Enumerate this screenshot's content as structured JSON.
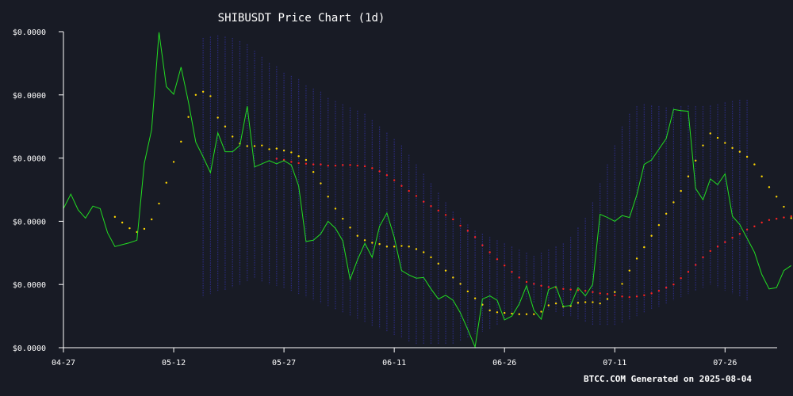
{
  "chart_data": {
    "type": "line",
    "title": "SHIBUSDT Price Chart (1d)",
    "xlabel": "",
    "ylabel": "",
    "grid": false,
    "legend": "none",
    "x_tick_labels": [
      "04-27",
      "05-12",
      "05-27",
      "06-11",
      "06-26",
      "07-11",
      "07-26"
    ],
    "y_tick_labels": [
      "$0.0000",
      "$0.0000",
      "$0.0000",
      "$0.0000",
      "$0.0000",
      "$0.0000"
    ],
    "footer": "BTCC.COM Generated on 2025-08-04",
    "ylim": [
      0,
      5
    ],
    "series": [
      {
        "kind": "price_line",
        "color": "#22dd22",
        "start_date": "04-27",
        "values": [
          2.2,
          2.43,
          2.18,
          2.05,
          2.24,
          2.2,
          1.82,
          1.6,
          1.63,
          1.66,
          1.7,
          2.92,
          3.45,
          4.99,
          4.13,
          4.01,
          4.44,
          3.89,
          3.25,
          3.02,
          2.77,
          3.4,
          3.1,
          3.1,
          3.2,
          3.82,
          2.86,
          2.91,
          2.96,
          2.91,
          2.96,
          2.89,
          2.56,
          1.68,
          1.7,
          1.8,
          2.0,
          1.89,
          1.69,
          1.08,
          1.39,
          1.65,
          1.43,
          1.92,
          2.13,
          1.75,
          1.22,
          1.15,
          1.1,
          1.11,
          0.93,
          0.77,
          0.83,
          0.75,
          0.55,
          0.29,
          0.01,
          0.77,
          0.82,
          0.75,
          0.44,
          0.5,
          0.69,
          0.98,
          0.59,
          0.45,
          0.92,
          0.97,
          0.65,
          0.67,
          0.95,
          0.82,
          1.0,
          2.11,
          2.06,
          2.0,
          2.09,
          2.06,
          2.42,
          2.9,
          2.97,
          3.14,
          3.31,
          3.77,
          3.75,
          3.74,
          2.52,
          2.34,
          2.67,
          2.58,
          2.75,
          2.08,
          1.95,
          1.73,
          1.51,
          1.16,
          0.93,
          0.95,
          1.22,
          1.3
        ]
      },
      {
        "kind": "moving_average_short",
        "color": "#ffd700",
        "start_date": "05-04",
        "values": [
          2.07,
          1.98,
          1.89,
          1.83,
          1.88,
          2.03,
          2.28,
          2.61,
          2.94,
          3.26,
          3.65,
          4.0,
          4.05,
          3.98,
          3.64,
          3.5,
          3.34,
          3.23,
          3.19,
          3.19,
          3.2,
          3.14,
          3.15,
          3.12,
          3.09,
          3.03,
          2.97,
          2.78,
          2.6,
          2.39,
          2.2,
          2.04,
          1.9,
          1.77,
          1.7,
          1.66,
          1.64,
          1.6,
          1.6,
          1.61,
          1.6,
          1.56,
          1.51,
          1.43,
          1.33,
          1.22,
          1.11,
          1.01,
          0.89,
          0.78,
          0.68,
          0.59,
          0.56,
          0.55,
          0.54,
          0.53,
          0.53,
          0.53,
          0.57,
          0.67,
          0.7,
          0.65,
          0.66,
          0.71,
          0.72,
          0.72,
          0.7,
          0.77,
          0.88,
          1.01,
          1.22,
          1.41,
          1.59,
          1.77,
          1.94,
          2.12,
          2.3,
          2.48,
          2.71,
          2.96,
          3.2,
          3.39,
          3.32,
          3.24,
          3.16,
          3.1,
          3.02,
          2.9,
          2.71,
          2.54,
          2.39,
          2.23,
          2.05,
          1.85,
          1.71,
          1.55
        ]
      },
      {
        "kind": "moving_average_long",
        "color": "#ff2222",
        "start_date": "05-26",
        "values": [
          2.99,
          2.97,
          2.94,
          2.92,
          2.91,
          2.9,
          2.9,
          2.88,
          2.88,
          2.89,
          2.89,
          2.88,
          2.87,
          2.84,
          2.79,
          2.73,
          2.65,
          2.56,
          2.48,
          2.4,
          2.31,
          2.24,
          2.17,
          2.1,
          2.03,
          1.93,
          1.85,
          1.75,
          1.62,
          1.51,
          1.4,
          1.3,
          1.2,
          1.11,
          1.04,
          1.01,
          0.98,
          0.96,
          0.95,
          0.93,
          0.92,
          0.91,
          0.9,
          0.88,
          0.86,
          0.85,
          0.83,
          0.81,
          0.8,
          0.81,
          0.83,
          0.86,
          0.9,
          0.95,
          1.0,
          1.1,
          1.2,
          1.31,
          1.43,
          1.53,
          1.6,
          1.67,
          1.74,
          1.8,
          1.87,
          1.92,
          1.98,
          2.02,
          2.04,
          2.06,
          2.08,
          2.09,
          2.1,
          2.11
        ]
      },
      {
        "kind": "band",
        "color": "#2e2e88",
        "start_date": "05-16",
        "upper": [
          4.9,
          4.92,
          4.94,
          4.92,
          4.9,
          4.85,
          4.8,
          4.7,
          4.6,
          4.5,
          4.45,
          4.35,
          4.3,
          4.25,
          4.15,
          4.1,
          4.05,
          3.95,
          3.9,
          3.85,
          3.8,
          3.75,
          3.7,
          3.6,
          3.5,
          3.4,
          3.3,
          3.2,
          3.05,
          2.9,
          2.75,
          2.6,
          2.45,
          2.3,
          2.15,
          2.05,
          1.95,
          1.85,
          1.8,
          1.75,
          1.7,
          1.65,
          1.6,
          1.55,
          1.5,
          1.45,
          1.5,
          1.55,
          1.6,
          1.65,
          1.75,
          1.9,
          2.05,
          2.3,
          2.6,
          2.9,
          3.2,
          3.5,
          3.7,
          3.82,
          3.85,
          3.83,
          3.82,
          3.8,
          3.8,
          3.82,
          3.83,
          3.82,
          3.82,
          3.83,
          3.85,
          3.88,
          3.9,
          3.92,
          3.92
        ],
        "lower": [
          0.8,
          0.85,
          0.9,
          0.9,
          0.95,
          1.0,
          1.05,
          1.1,
          1.05,
          1.0,
          0.98,
          0.95,
          0.9,
          0.85,
          0.8,
          0.75,
          0.7,
          0.65,
          0.6,
          0.55,
          0.5,
          0.45,
          0.4,
          0.35,
          0.3,
          0.25,
          0.2,
          0.15,
          0.1,
          0.05,
          0.05,
          0.05,
          0.05,
          0.05,
          0.05,
          0.1,
          0.15,
          0.2,
          0.25,
          0.3,
          0.35,
          0.45,
          0.55,
          0.65,
          0.75,
          0.7,
          0.65,
          0.6,
          0.55,
          0.5,
          0.5,
          0.45,
          0.4,
          0.35,
          0.35,
          0.35,
          0.35,
          0.4,
          0.45,
          0.5,
          0.55,
          0.6,
          0.65,
          0.7,
          0.75,
          0.8,
          0.85,
          0.9,
          0.95,
          1.0,
          0.95,
          0.9,
          0.85,
          0.8,
          0.75
        ]
      }
    ],
    "colors": {
      "background": "#181b25",
      "axis": "#ffffff",
      "text": "#ffffff"
    }
  }
}
